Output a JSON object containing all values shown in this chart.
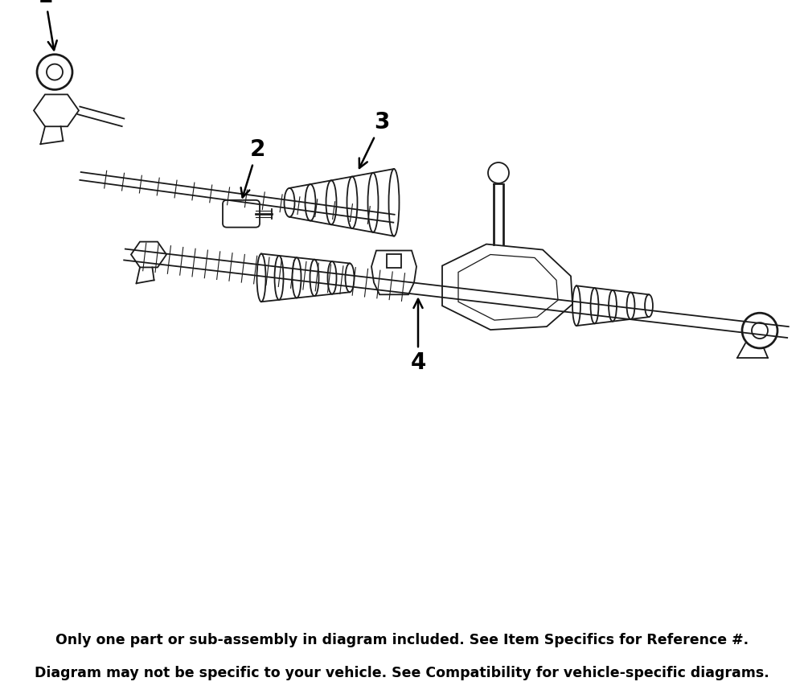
{
  "background_color": "#ffffff",
  "footer_bg_color": "#e8830c",
  "footer_text_color": "#000000",
  "footer_line1": "Only one part or sub-assembly in diagram included. See Item Specifics for Reference #.",
  "footer_line2": "Diagram may not be specific to your vehicle. See Compatibility for vehicle-specific diagrams.",
  "footer_fontsize": 12.5,
  "footer_fontweight": "bold",
  "line_color": "#1a1a1a",
  "lw": 1.3,
  "fig_width": 10.0,
  "fig_height": 8.63,
  "dpi": 100
}
